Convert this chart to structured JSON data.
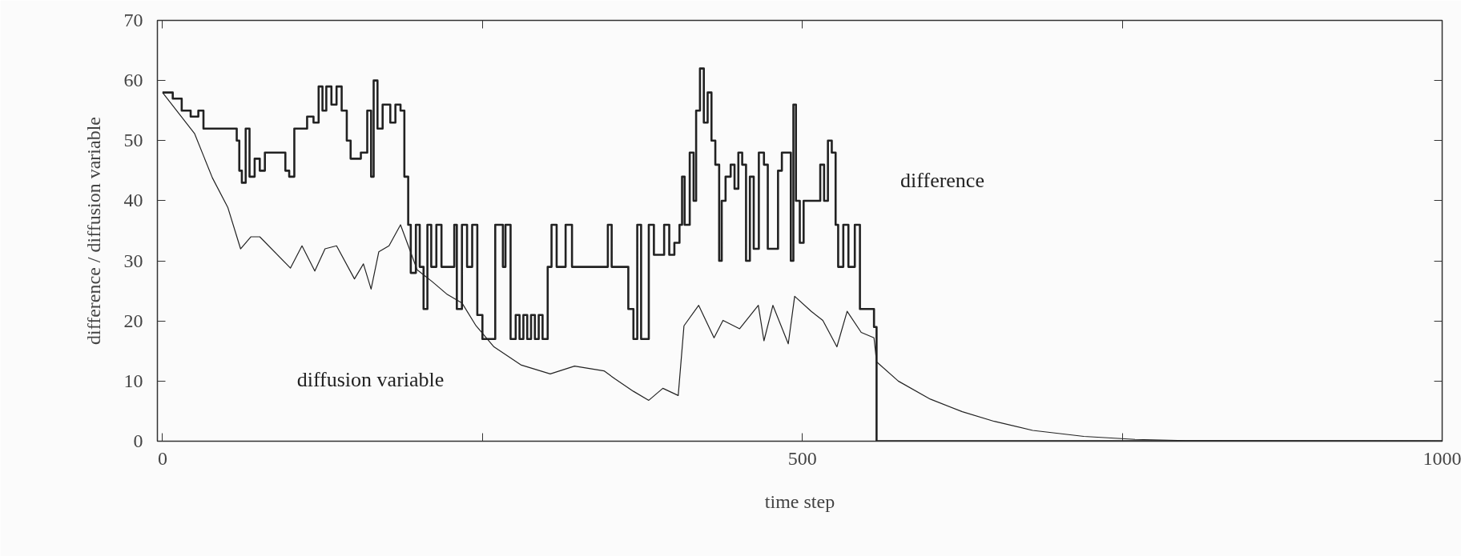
{
  "chart_data": {
    "type": "line",
    "xlabel": "time step",
    "ylabel": "difference / diffusion variable",
    "xlim": [
      -4,
      1000
    ],
    "ylim": [
      0,
      70
    ],
    "xticks": [
      0,
      {
        "value": 250,
        "label": null
      },
      500,
      {
        "value": 750,
        "label": null
      },
      1000
    ],
    "yticks": [
      0,
      10,
      20,
      30,
      40,
      50,
      60,
      70
    ],
    "grid": false,
    "legend": false,
    "series": [
      {
        "name": "difference",
        "type": "step",
        "color": "#222222",
        "x": [
          0,
          8,
          15,
          22,
          28,
          32,
          55,
          58,
          60,
          62,
          65,
          68,
          72,
          76,
          80,
          94,
          96,
          99,
          103,
          108,
          113,
          118,
          122,
          125,
          128,
          132,
          136,
          140,
          144,
          147,
          152,
          155,
          160,
          163,
          165,
          168,
          172,
          176,
          178,
          182,
          186,
          189,
          192,
          194,
          198,
          201,
          204,
          207,
          210,
          214,
          218,
          226,
          228,
          230,
          234,
          238,
          242,
          246,
          250,
          256,
          260,
          266,
          268,
          272,
          276,
          279,
          282,
          285,
          288,
          291,
          294,
          297,
          301,
          304,
          308,
          315,
          320,
          348,
          351,
          364,
          368,
          371,
          374,
          378,
          380,
          384,
          392,
          396,
          400,
          404,
          406,
          408,
          412,
          415,
          417,
          420,
          423,
          426,
          429,
          432,
          435,
          437,
          440,
          444,
          447,
          450,
          453,
          456,
          459,
          462,
          466,
          470,
          473,
          476,
          481,
          484,
          487,
          491,
          493,
          495,
          498,
          501,
          510,
          514,
          517,
          520,
          523,
          526,
          528,
          532,
          536,
          541,
          545,
          553,
          556,
          558,
          1000
        ],
        "values": [
          58,
          57,
          55,
          54,
          55,
          52,
          52,
          50,
          45,
          43,
          52,
          44,
          47,
          45,
          48,
          48,
          45,
          44,
          52,
          52,
          54,
          53,
          59,
          55,
          59,
          56,
          59,
          55,
          50,
          47,
          47,
          48,
          55,
          44,
          60,
          52,
          56,
          56,
          53,
          56,
          55,
          44,
          36,
          28,
          36,
          29,
          22,
          36,
          29,
          36,
          29,
          29,
          36,
          22,
          36,
          29,
          36,
          21,
          17,
          17,
          36,
          29,
          36,
          17,
          21,
          17,
          21,
          17,
          21,
          17,
          21,
          17,
          29,
          36,
          29,
          36,
          29,
          36,
          29,
          22,
          17,
          36,
          17,
          17,
          36,
          31,
          36,
          31,
          33,
          36,
          44,
          36,
          48,
          40,
          55,
          62,
          53,
          58,
          50,
          46,
          30,
          40,
          44,
          46,
          42,
          48,
          46,
          30,
          44,
          32,
          48,
          46,
          32,
          32,
          45,
          48,
          48,
          30,
          56,
          40,
          33,
          40,
          40,
          46,
          40,
          50,
          48,
          36,
          29,
          36,
          29,
          36,
          22,
          22,
          19,
          0,
          0
        ]
      },
      {
        "name": "diffusion variable",
        "color": "#222222",
        "x": [
          0,
          25,
          39,
          51,
          61,
          69,
          76,
          100,
          109,
          119,
          127,
          136,
          150,
          157,
          163,
          169,
          177,
          186,
          199,
          211,
          222,
          234,
          245,
          259,
          280,
          303,
          322,
          345,
          354,
          368,
          380,
          391,
          403,
          407.5,
          419,
          431,
          438,
          451,
          465.6,
          470,
          477,
          489,
          494,
          507,
          516,
          527,
          535,
          546,
          556,
          558,
          575,
          600,
          625,
          650,
          680,
          720,
          760,
          800,
          1000
        ],
        "values": [
          58,
          51.2,
          43.8,
          38.9,
          32,
          34,
          34,
          28.8,
          32.5,
          28.3,
          32,
          32.5,
          27,
          29.5,
          25.3,
          31.5,
          32.5,
          36,
          28.5,
          26.5,
          24.5,
          23,
          19.2,
          15.7,
          12.7,
          11.2,
          12.5,
          11.7,
          10.3,
          8.3,
          6.8,
          8.8,
          7.6,
          19.2,
          22.6,
          17.2,
          20.1,
          18.7,
          22.6,
          16.7,
          22.6,
          16.2,
          24.1,
          21.6,
          20.1,
          15.7,
          21.6,
          18.1,
          17.2,
          13.2,
          10,
          7,
          4.9,
          3.3,
          1.8,
          0.8,
          0.3,
          0.1,
          0
        ]
      }
    ]
  }
}
